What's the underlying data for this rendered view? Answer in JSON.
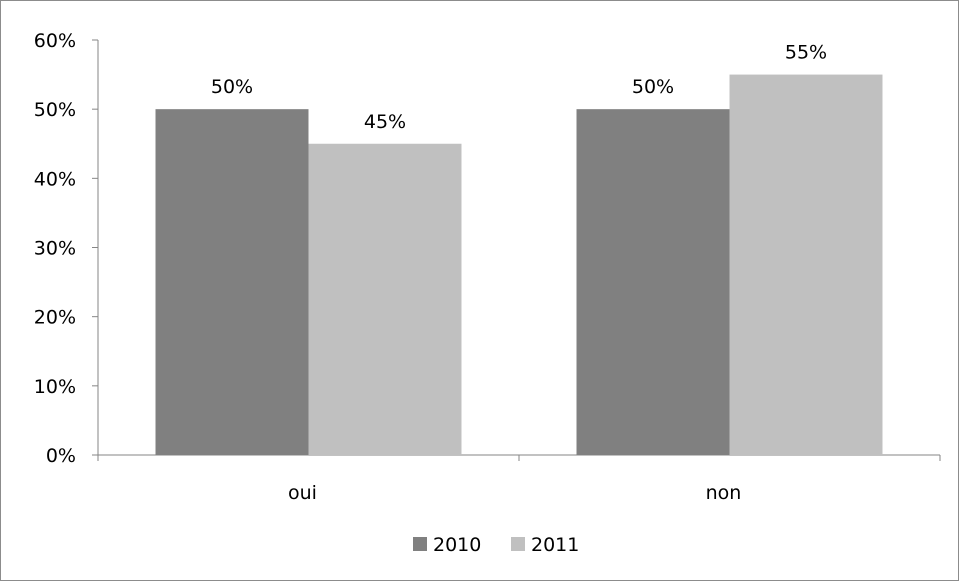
{
  "chart_data": {
    "type": "bar",
    "title": "",
    "xlabel": "",
    "ylabel": "",
    "categories": [
      "oui",
      "non"
    ],
    "series": [
      {
        "name": "2010",
        "values": [
          50,
          50
        ],
        "labels": [
          "50%",
          "50%"
        ],
        "color": "#808080"
      },
      {
        "name": "2011",
        "values": [
          45,
          55
        ],
        "labels": [
          "45%",
          "55%"
        ],
        "color": "#c0c0c0"
      }
    ],
    "ylim": [
      0,
      60
    ],
    "yticks": [
      0,
      10,
      20,
      30,
      40,
      50,
      60
    ],
    "ytick_labels": [
      "0%",
      "10%",
      "20%",
      "30%",
      "40%",
      "50%",
      "60%"
    ],
    "grid": false,
    "legend_position": "bottom"
  }
}
